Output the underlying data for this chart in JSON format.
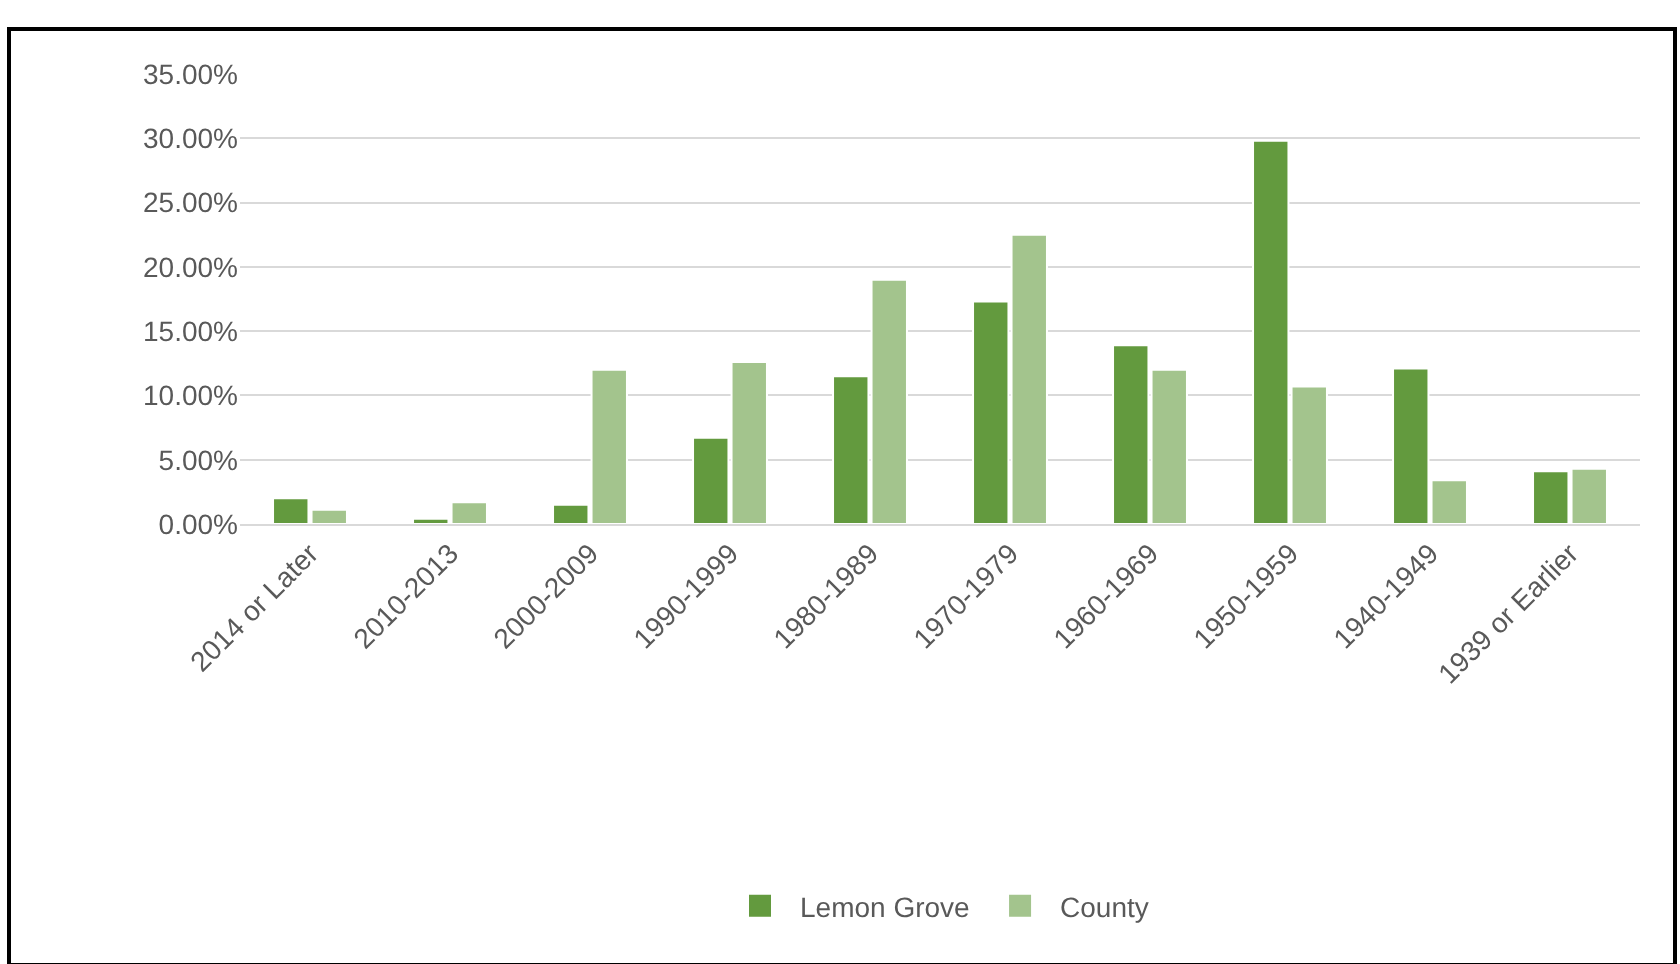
{
  "chart_data": {
    "type": "bar",
    "categories": [
      "2014 or Later",
      "2010-2013",
      "2000-2009",
      "1990-1999",
      "1980-1989",
      "1970-1979",
      "1960-1969",
      "1950-1959",
      "1940-1949",
      "1939 or Earlier"
    ],
    "series": [
      {
        "name": "Lemon Grove",
        "color": "#639a3e",
        "values": [
          2.0,
          0.4,
          1.5,
          6.7,
          11.5,
          17.3,
          13.9,
          29.8,
          12.1,
          4.1
        ]
      },
      {
        "name": "County",
        "color": "#a3c48d",
        "values": [
          1.1,
          1.7,
          12.0,
          12.6,
          19.0,
          22.5,
          12.0,
          10.7,
          3.4,
          4.3
        ]
      }
    ],
    "ylim": [
      0,
      35
    ],
    "yticks": [
      {
        "value": 0,
        "label": "0.00%"
      },
      {
        "value": 5,
        "label": "5.00%"
      },
      {
        "value": 10,
        "label": "10.00%"
      },
      {
        "value": 15,
        "label": "15.00%"
      },
      {
        "value": 20,
        "label": "20.00%"
      },
      {
        "value": 25,
        "label": "25.00%"
      },
      {
        "value": 30,
        "label": "30.00%"
      },
      {
        "value": 35,
        "label": "35.00%"
      }
    ],
    "grid": "y",
    "legend": "bottom"
  }
}
